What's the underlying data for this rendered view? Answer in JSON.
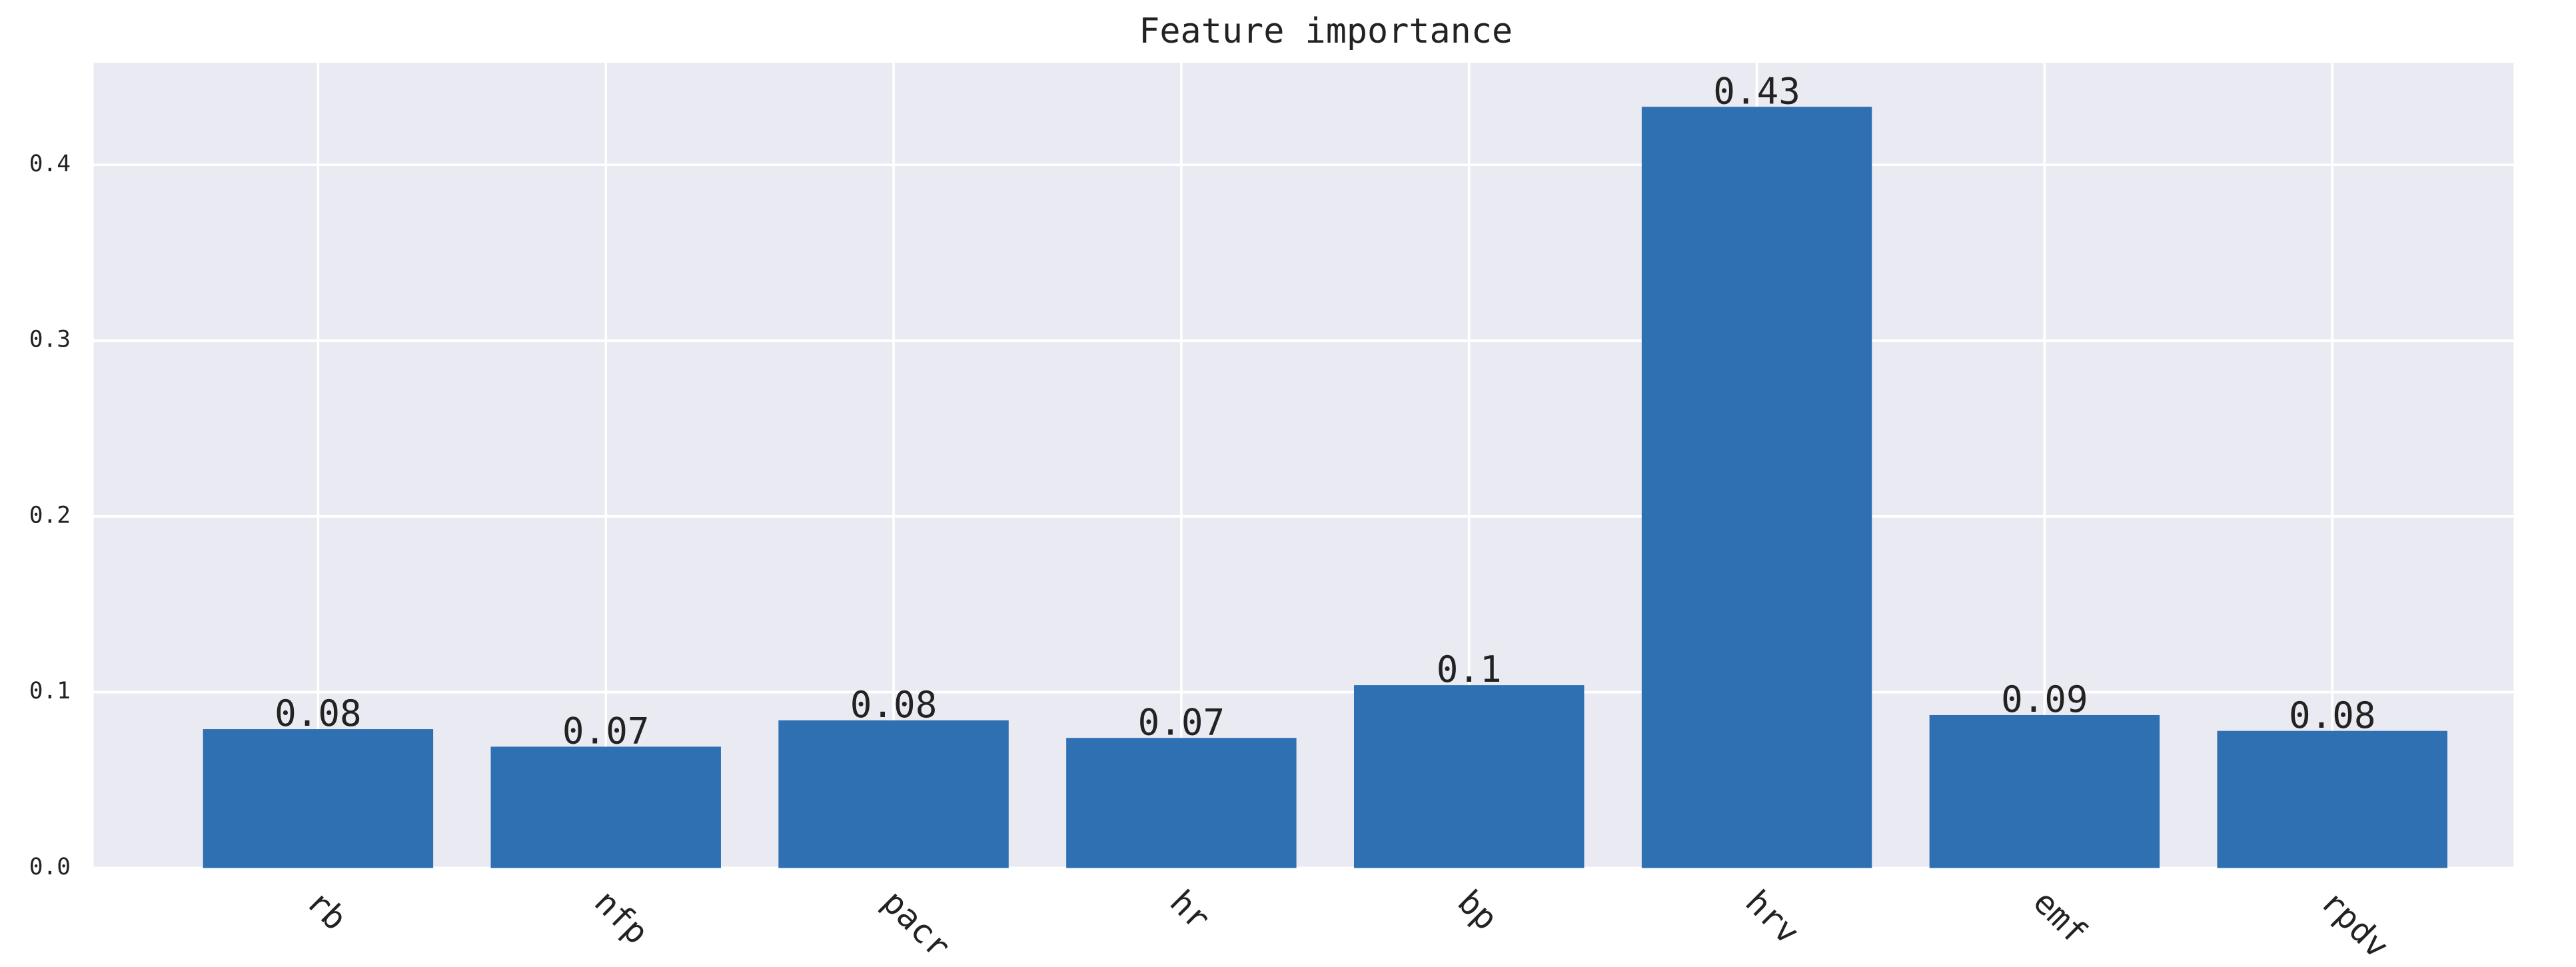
{
  "chart_data": {
    "type": "bar",
    "title": "Feature importance",
    "categories": [
      "rb",
      "nfp",
      "pacr",
      "hr",
      "bp",
      "hrv",
      "emf",
      "rpdv"
    ],
    "values": [
      0.079,
      0.069,
      0.084,
      0.074,
      0.104,
      0.433,
      0.087,
      0.078
    ],
    "value_labels": [
      "0.08",
      "0.07",
      "0.08",
      "0.07",
      "0.1",
      "0.43",
      "0.09",
      "0.08"
    ],
    "color": "#2e70b1",
    "ylim": [
      0,
      0.458
    ],
    "yticks": [
      {
        "value": 0,
        "label": "0.0"
      },
      0.1,
      0.2,
      0.3,
      0.4
    ],
    "grid": true
  }
}
